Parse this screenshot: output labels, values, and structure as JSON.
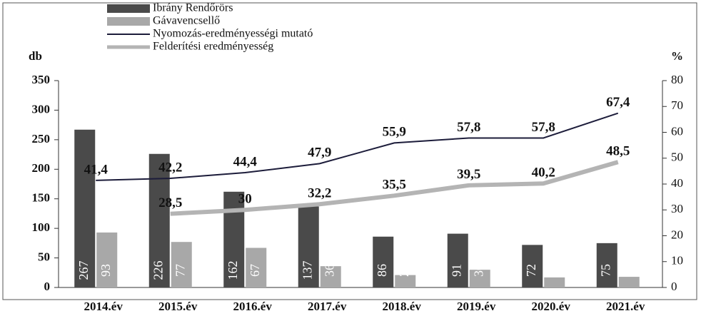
{
  "chart_data": {
    "type": "bar",
    "categories": [
      "2014.év",
      "2015.év",
      "2016.év",
      "2017.év",
      "2018.év",
      "2019.év",
      "2020.év",
      "2021.év"
    ],
    "series": [
      {
        "name": "Ibrány Rendőrörs",
        "type": "bar",
        "color": "#4a4a4a",
        "values": [
          267,
          226,
          162,
          137,
          86,
          91,
          72,
          75
        ]
      },
      {
        "name": "Gávavencsellő",
        "type": "bar",
        "color": "#a8a8a8",
        "values": [
          93,
          77,
          67,
          36,
          21,
          30,
          17,
          18
        ]
      },
      {
        "name": "Nyomozás-eredményességi mutató",
        "type": "line",
        "axis": "y2",
        "color": "#1c1c3a",
        "values": [
          41.4,
          42.2,
          44.4,
          47.9,
          55.9,
          57.8,
          57.8,
          67.4
        ],
        "value_labels": [
          "41,4",
          "42,2",
          "44,4",
          "47,9",
          "55,9",
          "57,8",
          "57,8",
          "67,4"
        ]
      },
      {
        "name": "Felderítési eredményesség",
        "type": "line",
        "axis": "y2",
        "color": "#b4b4b4",
        "values": [
          null,
          28.5,
          30,
          32.2,
          35.5,
          39.5,
          40.2,
          48.5
        ],
        "value_labels": [
          null,
          "28,5",
          "30",
          "32,2",
          "35,5",
          "39,5",
          "40,2",
          "48,5"
        ]
      }
    ],
    "ylabel": "db",
    "y2label": "%",
    "ylim": [
      0,
      350
    ],
    "yticks": [
      0,
      50,
      100,
      150,
      200,
      250,
      300,
      350
    ],
    "y2lim": [
      0,
      80
    ],
    "y2ticks": [
      0,
      10,
      20,
      30,
      40,
      50,
      60,
      70,
      80
    ],
    "legend": "top"
  }
}
